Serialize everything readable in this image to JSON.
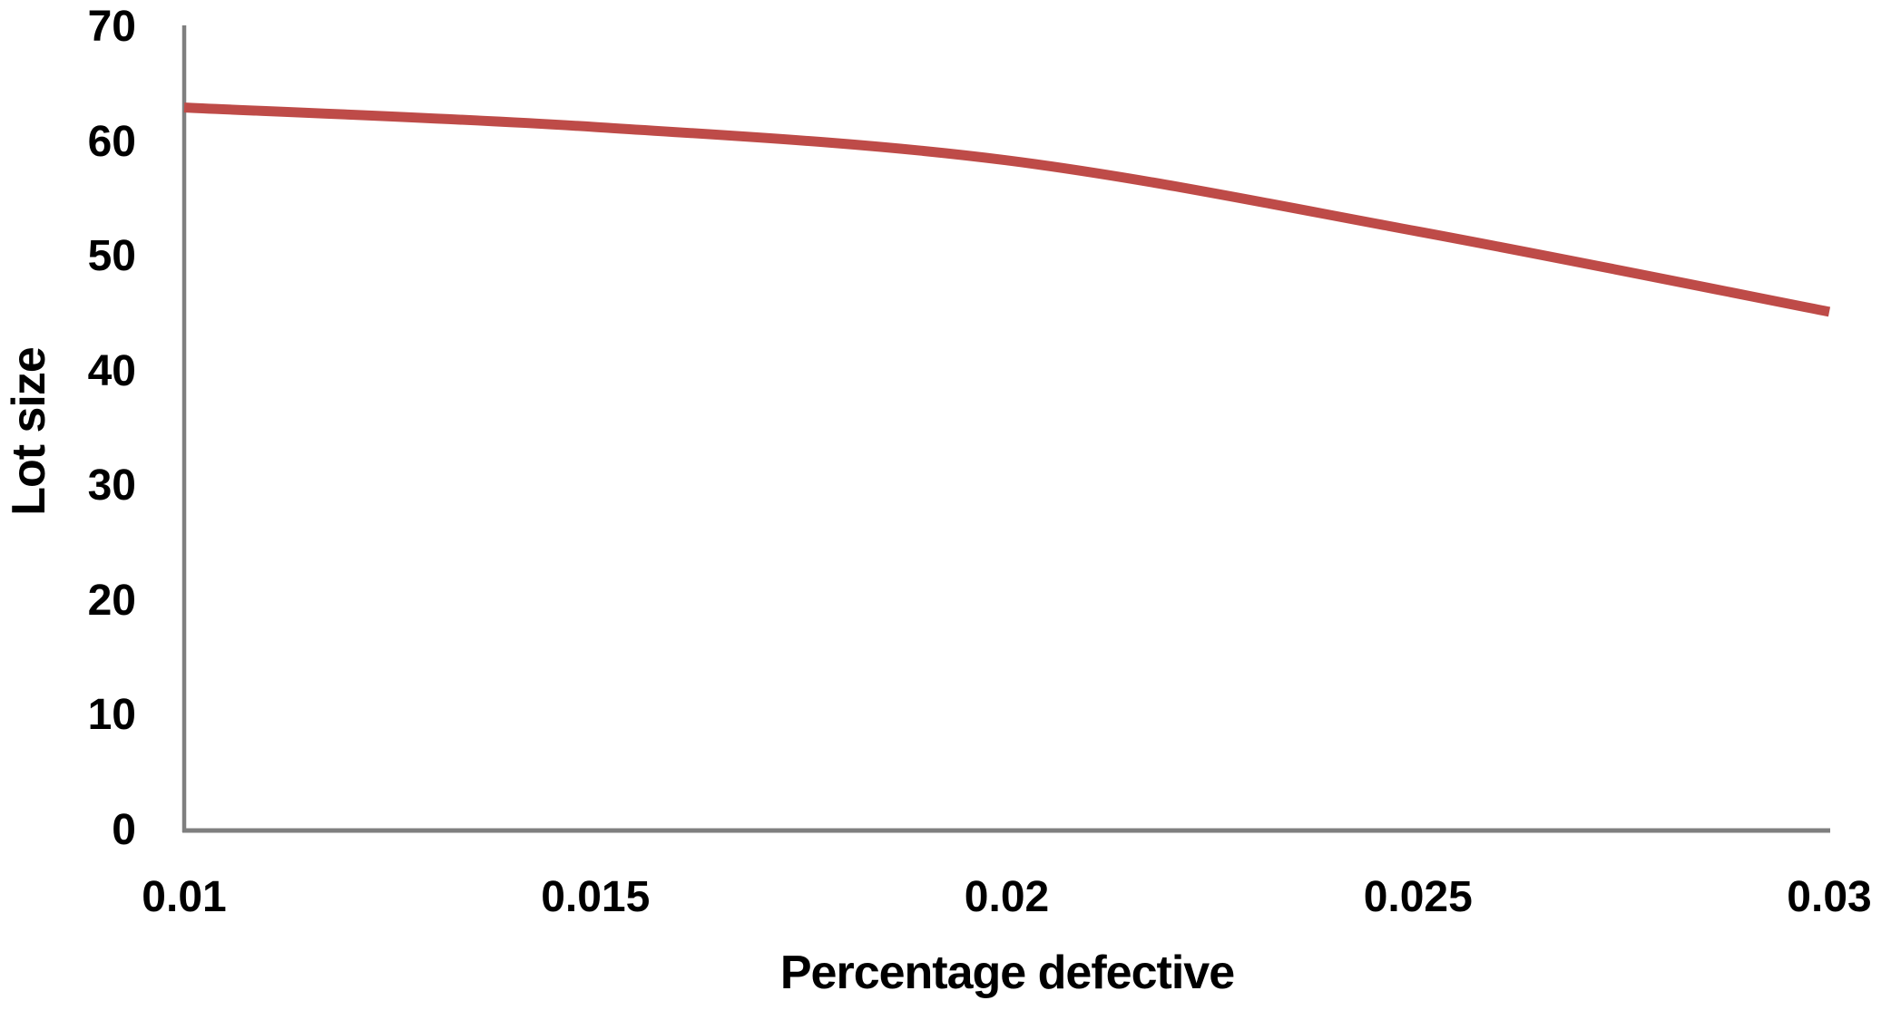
{
  "chart_data": {
    "type": "line",
    "title": "",
    "xlabel": "Percentage defective",
    "ylabel": "Lot size",
    "x": [
      0.01,
      0.015,
      0.02,
      0.025,
      0.03
    ],
    "y": [
      63,
      61.3,
      58.4,
      52.2,
      45.2
    ],
    "xlim": [
      0.01,
      0.03
    ],
    "ylim": [
      0,
      70
    ],
    "xticks": [
      0.01,
      0.015,
      0.02,
      0.025,
      0.03
    ],
    "xtick_labels": [
      "0.01",
      "0.015",
      "0.02",
      "0.025",
      "0.03"
    ],
    "yticks": [
      0,
      10,
      20,
      30,
      40,
      50,
      60,
      70
    ],
    "ytick_labels": [
      "0",
      "10",
      "20",
      "30",
      "40",
      "50",
      "60",
      "70"
    ],
    "grid": false,
    "legend": "none",
    "smooth": true,
    "line_color": "#BE4B48",
    "line_width": 11,
    "axis_color": "#7F7F7F",
    "text_color": "#000000",
    "background": "#FFFFFF"
  }
}
